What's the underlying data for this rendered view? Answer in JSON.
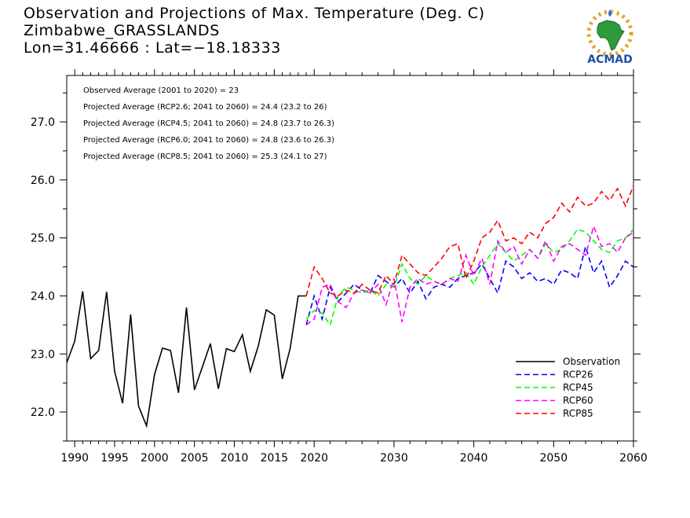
{
  "header": {
    "title_line1": "Observation and Projections of Max. Temperature (Deg. C)",
    "title_line2": "Zimbabwe_GRASSLANDS",
    "title_line3": "Lon=31.46666 : Lat=−18.18333"
  },
  "logo": {
    "text": "ACMAD",
    "icon": "africa-map-logo"
  },
  "annotations": [
    "Observed Average (2001 to 2020) = 23",
    "Projected Average (RCP2.6; 2041 to 2060) = 24.4 (23.2 to 26)",
    "Projected Average (RCP4.5; 2041 to 2060) = 24.8 (23.7 to 26.3)",
    "Projected Average (RCP6.0; 2041 to 2060) = 24.8 (23.6 to 26.3)",
    "Projected Average (RCP8.5; 2041 to 2060) = 25.3 (24.1 to 27)"
  ],
  "colors": {
    "observation": "#000000",
    "rcp26": "#0000ff",
    "rcp45": "#00ff00",
    "rcp60": "#ff00ff",
    "rcp85": "#ff0000"
  },
  "chart_data": {
    "type": "line",
    "xlim": [
      1989,
      2060
    ],
    "ylim": [
      21.5,
      27.8
    ],
    "x_ticks": [
      1990,
      1995,
      2000,
      2005,
      2010,
      2015,
      2020,
      2030,
      2040,
      2050,
      2060
    ],
    "x_tick_labels": [
      "1990",
      "1995",
      "2000",
      "2005",
      "2010",
      "2015",
      "2020",
      "2030",
      "2040",
      "2050",
      "2060"
    ],
    "y_ticks": [
      22.0,
      23.0,
      24.0,
      25.0,
      26.0,
      27.0
    ],
    "y_tick_labels": [
      "22.0",
      "23.0",
      "24.0",
      "25.0",
      "26.0",
      "27.0"
    ],
    "legend_position": "bottom-right",
    "series": [
      {
        "name": "Observation",
        "key": "observation",
        "style": "solid",
        "x": [
          1989,
          1990,
          1991,
          1992,
          1993,
          1994,
          1995,
          1996,
          1997,
          1998,
          1999,
          2000,
          2001,
          2002,
          2003,
          2004,
          2005,
          2006,
          2007,
          2008,
          2009,
          2010,
          2011,
          2012,
          2013,
          2014,
          2015,
          2016,
          2017,
          2018,
          2019
        ],
        "y": [
          22.85,
          23.22,
          24.08,
          22.92,
          23.06,
          24.07,
          22.7,
          22.15,
          23.68,
          22.1,
          21.76,
          22.65,
          23.1,
          23.06,
          22.33,
          23.8,
          22.38,
          22.78,
          23.18,
          22.4,
          23.09,
          23.04,
          23.33,
          22.7,
          23.14,
          23.76,
          23.67,
          22.57,
          23.1,
          24.0,
          24.0
        ]
      },
      {
        "name": "RCP26",
        "key": "rcp26",
        "style": "dashed",
        "x": [
          2019,
          2020,
          2021,
          2022,
          2023,
          2024,
          2025,
          2026,
          2027,
          2028,
          2029,
          2030,
          2031,
          2032,
          2033,
          2034,
          2035,
          2036,
          2037,
          2038,
          2039,
          2040,
          2041,
          2042,
          2043,
          2044,
          2045,
          2046,
          2047,
          2048,
          2049,
          2050,
          2051,
          2052,
          2053,
          2054,
          2055,
          2056,
          2057,
          2058,
          2059,
          2060
        ],
        "y": [
          23.5,
          24.0,
          23.6,
          24.15,
          23.9,
          24.05,
          24.2,
          24.1,
          24.05,
          24.35,
          24.25,
          24.15,
          24.3,
          24.05,
          24.25,
          23.95,
          24.15,
          24.2,
          24.15,
          24.3,
          24.35,
          24.4,
          24.55,
          24.3,
          24.05,
          24.6,
          24.5,
          24.3,
          24.4,
          24.25,
          24.3,
          24.2,
          24.45,
          24.4,
          24.3,
          24.85,
          24.4,
          24.6,
          24.15,
          24.35,
          24.6,
          24.5
        ]
      },
      {
        "name": "RCP45",
        "key": "rcp45",
        "style": "dashed",
        "x": [
          2019,
          2020,
          2021,
          2022,
          2023,
          2024,
          2025,
          2026,
          2027,
          2028,
          2029,
          2030,
          2031,
          2032,
          2033,
          2034,
          2035,
          2036,
          2037,
          2038,
          2039,
          2040,
          2041,
          2042,
          2043,
          2044,
          2045,
          2046,
          2047,
          2048,
          2049,
          2050,
          2051,
          2052,
          2053,
          2054,
          2055,
          2056,
          2057,
          2058,
          2059,
          2060
        ],
        "y": [
          23.6,
          23.75,
          23.7,
          23.5,
          24.0,
          24.15,
          24.1,
          24.05,
          24.1,
          24.0,
          24.2,
          24.15,
          24.55,
          24.3,
          24.2,
          24.35,
          24.25,
          24.2,
          24.3,
          24.35,
          24.4,
          24.2,
          24.5,
          24.7,
          24.9,
          24.75,
          24.6,
          24.7,
          24.8,
          24.65,
          24.9,
          24.75,
          24.8,
          24.95,
          25.15,
          25.1,
          24.95,
          24.8,
          24.75,
          24.95,
          25.0,
          25.15
        ]
      },
      {
        "name": "RCP60",
        "key": "rcp60",
        "style": "dashed",
        "x": [
          2019,
          2020,
          2021,
          2022,
          2023,
          2024,
          2025,
          2026,
          2027,
          2028,
          2029,
          2030,
          2031,
          2032,
          2033,
          2034,
          2035,
          2036,
          2037,
          2038,
          2039,
          2040,
          2041,
          2042,
          2043,
          2044,
          2045,
          2046,
          2047,
          2048,
          2049,
          2050,
          2051,
          2052,
          2053,
          2054,
          2055,
          2056,
          2057,
          2058,
          2059,
          2060
        ],
        "y": [
          23.5,
          23.6,
          24.15,
          24.2,
          23.9,
          23.8,
          24.05,
          24.1,
          24.05,
          24.2,
          23.85,
          24.3,
          23.55,
          24.15,
          24.3,
          24.2,
          24.25,
          24.2,
          24.3,
          24.25,
          24.7,
          24.35,
          24.65,
          24.2,
          24.95,
          24.75,
          24.85,
          24.55,
          24.8,
          24.65,
          24.95,
          24.6,
          24.85,
          24.9,
          24.8,
          24.7,
          25.2,
          24.85,
          24.9,
          24.75,
          25.0,
          25.1
        ]
      },
      {
        "name": "RCP85",
        "key": "rcp85",
        "style": "dashed",
        "x": [
          2019,
          2020,
          2021,
          2022,
          2023,
          2024,
          2025,
          2026,
          2027,
          2028,
          2029,
          2030,
          2031,
          2032,
          2033,
          2034,
          2035,
          2036,
          2037,
          2038,
          2039,
          2040,
          2041,
          2042,
          2043,
          2044,
          2045,
          2046,
          2047,
          2048,
          2049,
          2050,
          2051,
          2052,
          2053,
          2054,
          2055,
          2056,
          2057,
          2058,
          2059,
          2060
        ],
        "y": [
          24.0,
          24.5,
          24.3,
          24.05,
          24.0,
          24.1,
          24.05,
          24.2,
          24.1,
          24.05,
          24.35,
          24.2,
          24.7,
          24.55,
          24.4,
          24.35,
          24.5,
          24.65,
          24.85,
          24.9,
          24.3,
          24.6,
          25.0,
          25.1,
          25.3,
          24.95,
          25.0,
          24.9,
          25.1,
          25.0,
          25.25,
          25.35,
          25.6,
          25.45,
          25.7,
          25.55,
          25.6,
          25.8,
          25.65,
          25.85,
          25.55,
          25.9
        ]
      }
    ]
  }
}
